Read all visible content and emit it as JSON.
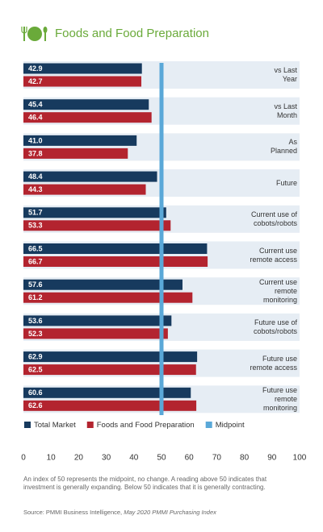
{
  "chart_data": {
    "type": "hbar",
    "title": "Foods and Food Preparation",
    "categories": [
      "vs Last\nYear",
      "vs Last\nMonth",
      "As\nPlanned",
      "Future",
      "Current use of\ncobots/robots",
      "Current use\nremote access",
      "Current use\nremote\nmonitoring",
      "Future use of\ncobots/robots",
      "Future use\nremote access",
      "Future use\nremote\nmonitoring"
    ],
    "series": [
      {
        "name": "Total Market",
        "color": "#173a5e",
        "values": [
          42.9,
          45.4,
          41.0,
          48.4,
          51.7,
          66.5,
          57.6,
          53.6,
          62.9,
          60.6
        ],
        "value_labels": [
          "42.9",
          "45.4",
          "41.0",
          "48.4",
          "51.7",
          "66.5",
          "57.6",
          "53.6",
          "62.9",
          "60.6"
        ]
      },
      {
        "name": "Foods and Food Preparation",
        "color": "#b3242f",
        "values": [
          42.7,
          46.4,
          37.8,
          44.3,
          53.3,
          66.7,
          61.2,
          52.3,
          62.5,
          62.6
        ]
      }
    ],
    "midpoint": {
      "name": "Midpoint",
      "value": 50,
      "color": "#5aa8d8"
    },
    "xlim": [
      0,
      100
    ],
    "xticks": [
      0,
      10,
      20,
      30,
      40,
      50,
      60,
      70,
      80,
      90,
      100
    ],
    "note": "An index of 50 represents the midpoint, no change.  A reading above 50 indicates that investment is generally expanding.  Below 50 indicates that it is generally contracting.",
    "source": "Source: PMMI Business Intelligence, ",
    "source_publication": "May 2020 PMMI Purchasing Index"
  }
}
